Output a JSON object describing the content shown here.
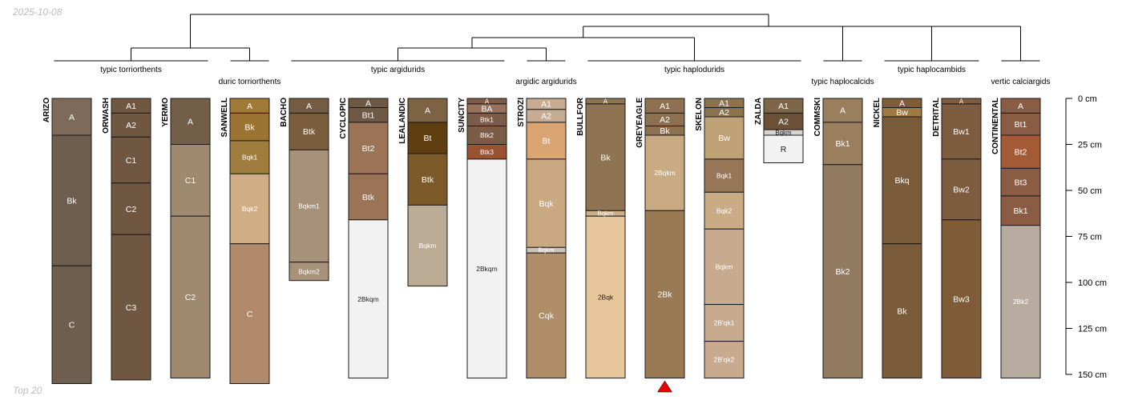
{
  "header": {
    "date": "2025-10-08"
  },
  "footer": {
    "label": "Top 20"
  },
  "depth_axis": {
    "unit": "cm",
    "ticks": [
      {
        "depth": 0,
        "label": "0 cm"
      },
      {
        "depth": 25,
        "label": "25 cm"
      },
      {
        "depth": 50,
        "label": "50 cm"
      },
      {
        "depth": 75,
        "label": "75 cm"
      },
      {
        "depth": 100,
        "label": "100 cm"
      },
      {
        "depth": 125,
        "label": "125 cm"
      },
      {
        "depth": 150,
        "label": "150 cm"
      }
    ]
  },
  "marker": {
    "profile": "GREYEAGLE",
    "color": "#e60000"
  },
  "groups": [
    {
      "label": "typic torriorthents",
      "members": [
        "ARIZO",
        "ORWASH",
        "YERMO"
      ]
    },
    {
      "label": "duric torriorthents",
      "members": [
        "SANWELL"
      ]
    },
    {
      "label": "typic argidurids",
      "members": [
        "BACHO",
        "CYCLOPIC",
        "LEALANDIC",
        "SUNCITY"
      ]
    },
    {
      "label": "argidic argidurids",
      "members": [
        "STROZI"
      ]
    },
    {
      "label": "typic haplodurids",
      "members": [
        "BULLFOR",
        "GREYEAGLE",
        "SKELON",
        "ZALDA"
      ]
    },
    {
      "label": "typic haplocalcids",
      "members": [
        "COMMSKI"
      ]
    },
    {
      "label": "typic haplocambids",
      "members": [
        "NICKEL",
        "DETRITAL"
      ]
    },
    {
      "label": "vertic calciargids",
      "members": [
        "CONTINENTAL"
      ]
    }
  ],
  "chart_data": {
    "type": "soil-profile-sketch",
    "depth_range": [
      0,
      150
    ],
    "depth_unit": "cm",
    "profiles": [
      {
        "name": "ARIZO",
        "horizons": [
          {
            "name": "A",
            "top": 0,
            "bottom": 20,
            "color": "#7d6a58"
          },
          {
            "name": "Bk",
            "top": 20,
            "bottom": 91,
            "color": "#6e5e4e"
          },
          {
            "name": "C",
            "top": 91,
            "bottom": 155,
            "color": "#6e5e4e"
          }
        ]
      },
      {
        "name": "ORWASH",
        "horizons": [
          {
            "name": "A1",
            "top": 0,
            "bottom": 8,
            "color": "#6f5741"
          },
          {
            "name": "A2",
            "top": 8,
            "bottom": 21,
            "color": "#6f5741"
          },
          {
            "name": "C1",
            "top": 21,
            "bottom": 46,
            "color": "#6f5741"
          },
          {
            "name": "C2",
            "top": 46,
            "bottom": 74,
            "color": "#6f5741"
          },
          {
            "name": "C3",
            "top": 74,
            "bottom": 153,
            "color": "#6f5741"
          }
        ]
      },
      {
        "name": "YERMO",
        "horizons": [
          {
            "name": "A",
            "top": 0,
            "bottom": 25,
            "color": "#735e47"
          },
          {
            "name": "C1",
            "top": 25,
            "bottom": 64,
            "color": "#a08a6f"
          },
          {
            "name": "C2",
            "top": 64,
            "bottom": 152,
            "color": "#a08a6f"
          }
        ]
      },
      {
        "name": "SANWELL",
        "horizons": [
          {
            "name": "A",
            "top": 0,
            "bottom": 8,
            "color": "#a27a38"
          },
          {
            "name": "Bk",
            "top": 8,
            "bottom": 23,
            "color": "#9b7433"
          },
          {
            "name": "Bqk1",
            "top": 23,
            "bottom": 41,
            "color": "#a07d3f"
          },
          {
            "name": "Bqk2",
            "top": 41,
            "bottom": 79,
            "color": "#cfae86"
          },
          {
            "name": "C",
            "top": 79,
            "bottom": 155,
            "color": "#b08a6a"
          }
        ]
      },
      {
        "name": "BACHO",
        "horizons": [
          {
            "name": "A",
            "top": 0,
            "bottom": 8,
            "color": "#735c42"
          },
          {
            "name": "Btk",
            "top": 8,
            "bottom": 28,
            "color": "#7a5d3d"
          },
          {
            "name": "Bqkm1",
            "top": 28,
            "bottom": 89,
            "color": "#a8917a"
          },
          {
            "name": "Bqkm2",
            "top": 89,
            "bottom": 99,
            "color": "#a8917a"
          }
        ]
      },
      {
        "name": "CYCLOPIC",
        "horizons": [
          {
            "name": "A",
            "top": 0,
            "bottom": 5,
            "color": "#6f5844"
          },
          {
            "name": "Bt1",
            "top": 5,
            "bottom": 13,
            "color": "#6f5844"
          },
          {
            "name": "Bt2",
            "top": 13,
            "bottom": 41,
            "color": "#9b7458"
          },
          {
            "name": "Btk",
            "top": 41,
            "bottom": 66,
            "color": "#9b7458"
          },
          {
            "name": "2Bkqm",
            "top": 66,
            "bottom": 152,
            "color": "#f2f2f2"
          }
        ]
      },
      {
        "name": "LEALANDIC",
        "horizons": [
          {
            "name": "A",
            "top": 0,
            "bottom": 13,
            "color": "#7d6244"
          },
          {
            "name": "Bt",
            "top": 13,
            "bottom": 30,
            "color": "#5f3e0f"
          },
          {
            "name": "Btk",
            "top": 30,
            "bottom": 58,
            "color": "#7d5a2a"
          },
          {
            "name": "Bqkm",
            "top": 58,
            "bottom": 102,
            "color": "#bcab94"
          }
        ]
      },
      {
        "name": "SUNCITY",
        "horizons": [
          {
            "name": "A",
            "top": 0,
            "bottom": 3,
            "color": "#7d5c47"
          },
          {
            "name": "BA",
            "top": 3,
            "bottom": 8,
            "color": "#98725d"
          },
          {
            "name": "Btk1",
            "top": 8,
            "bottom": 15,
            "color": "#7d5c47"
          },
          {
            "name": "Btk2",
            "top": 15,
            "bottom": 25,
            "color": "#7d5c47"
          },
          {
            "name": "Btk3",
            "top": 25,
            "bottom": 33,
            "color": "#9a5230"
          },
          {
            "name": "2Bkqm",
            "top": 33,
            "bottom": 152,
            "color": "#f2f2f2"
          }
        ]
      },
      {
        "name": "STROZI",
        "horizons": [
          {
            "name": "A1",
            "top": 0,
            "bottom": 6,
            "color": "#c5ac92"
          },
          {
            "name": "A2",
            "top": 6,
            "bottom": 13,
            "color": "#c5ac92"
          },
          {
            "name": "Bt",
            "top": 13,
            "bottom": 33,
            "color": "#dba473"
          },
          {
            "name": "Bqk",
            "top": 33,
            "bottom": 81,
            "color": "#caa882"
          },
          {
            "name": "Bqkm",
            "top": 81,
            "bottom": 84,
            "color": "#cfc3b8"
          },
          {
            "name": "Cqk",
            "top": 84,
            "bottom": 152,
            "color": "#b08e6a"
          }
        ]
      },
      {
        "name": "BULLFOR",
        "horizons": [
          {
            "name": "A",
            "top": 0,
            "bottom": 3,
            "color": "#8e7453"
          },
          {
            "name": "Bk",
            "top": 3,
            "bottom": 61,
            "color": "#8e7453"
          },
          {
            "name": "Bqkm",
            "top": 61,
            "bottom": 64,
            "color": "#c9ae89"
          },
          {
            "name": "2Bqk",
            "top": 64,
            "bottom": 152,
            "color": "#e6c69a"
          }
        ]
      },
      {
        "name": "GREYEAGLE",
        "horizons": [
          {
            "name": "A1",
            "top": 0,
            "bottom": 8,
            "color": "#8c7050"
          },
          {
            "name": "A2",
            "top": 8,
            "bottom": 15,
            "color": "#8c7050"
          },
          {
            "name": "Bk",
            "top": 15,
            "bottom": 20,
            "color": "#8c7050"
          },
          {
            "name": "2Bqkm",
            "top": 20,
            "bottom": 61,
            "color": "#c8aa83"
          },
          {
            "name": "2Bk",
            "top": 61,
            "bottom": 152,
            "color": "#9a7a55"
          }
        ]
      },
      {
        "name": "SKELON",
        "horizons": [
          {
            "name": "A1",
            "top": 0,
            "bottom": 5,
            "color": "#8c7350"
          },
          {
            "name": "A2",
            "top": 5,
            "bottom": 10,
            "color": "#8c7350"
          },
          {
            "name": "Bw",
            "top": 10,
            "bottom": 33,
            "color": "#bea276"
          },
          {
            "name": "Bqk1",
            "top": 33,
            "bottom": 51,
            "color": "#977658"
          },
          {
            "name": "Bqk2",
            "top": 51,
            "bottom": 71,
            "color": "#c9ac85"
          },
          {
            "name": "Bqkm",
            "top": 71,
            "bottom": 112,
            "color": "#c8ab8e"
          },
          {
            "name": "2B'qk1",
            "top": 112,
            "bottom": 132,
            "color": "#c8ab8e"
          },
          {
            "name": "2B'qk2",
            "top": 132,
            "bottom": 152,
            "color": "#c8ab8e"
          }
        ]
      },
      {
        "name": "ZALDA",
        "horizons": [
          {
            "name": "A1",
            "top": 0,
            "bottom": 8,
            "color": "#7d6649"
          },
          {
            "name": "A2",
            "top": 8,
            "bottom": 17,
            "color": "#6a5138"
          },
          {
            "name": "Bqkm",
            "top": 17,
            "bottom": 20,
            "color": "#d8d4cf"
          },
          {
            "name": "R",
            "top": 20,
            "bottom": 35,
            "color": "#f2f2f2"
          }
        ]
      },
      {
        "name": "COMMSKI",
        "horizons": [
          {
            "name": "A",
            "top": 0,
            "bottom": 13,
            "color": "#9a7f5e"
          },
          {
            "name": "Bk1",
            "top": 13,
            "bottom": 36,
            "color": "#9a7f5e"
          },
          {
            "name": "Bk2",
            "top": 36,
            "bottom": 152,
            "color": "#927a60"
          }
        ]
      },
      {
        "name": "NICKEL",
        "horizons": [
          {
            "name": "A",
            "top": 0,
            "bottom": 5,
            "color": "#7d5c38"
          },
          {
            "name": "Bw",
            "top": 5,
            "bottom": 10,
            "color": "#a07a44"
          },
          {
            "name": "Bkq",
            "top": 10,
            "bottom": 79,
            "color": "#7b5c3a"
          },
          {
            "name": "Bk",
            "top": 79,
            "bottom": 152,
            "color": "#7b5c3a"
          }
        ]
      },
      {
        "name": "DETRITAL",
        "horizons": [
          {
            "name": "A",
            "top": 0,
            "bottom": 3,
            "color": "#7d5c40"
          },
          {
            "name": "Bw1",
            "top": 3,
            "bottom": 33,
            "color": "#7d5c40"
          },
          {
            "name": "Bw2",
            "top": 33,
            "bottom": 66,
            "color": "#7d5c40"
          },
          {
            "name": "Bw3",
            "top": 66,
            "bottom": 152,
            "color": "#7f5b38"
          }
        ]
      },
      {
        "name": "CONTINENTAL",
        "horizons": [
          {
            "name": "A",
            "top": 0,
            "bottom": 8,
            "color": "#8a5c43"
          },
          {
            "name": "Bt1",
            "top": 8,
            "bottom": 20,
            "color": "#8a5c43"
          },
          {
            "name": "Bt2",
            "top": 20,
            "bottom": 38,
            "color": "#a35a35"
          },
          {
            "name": "Bt3",
            "top": 38,
            "bottom": 53,
            "color": "#8a5c43"
          },
          {
            "name": "Bk1",
            "top": 53,
            "bottom": 69,
            "color": "#8a5c43"
          },
          {
            "name": "2Bk2",
            "top": 69,
            "bottom": 152,
            "color": "#b8aca0"
          }
        ]
      }
    ]
  }
}
